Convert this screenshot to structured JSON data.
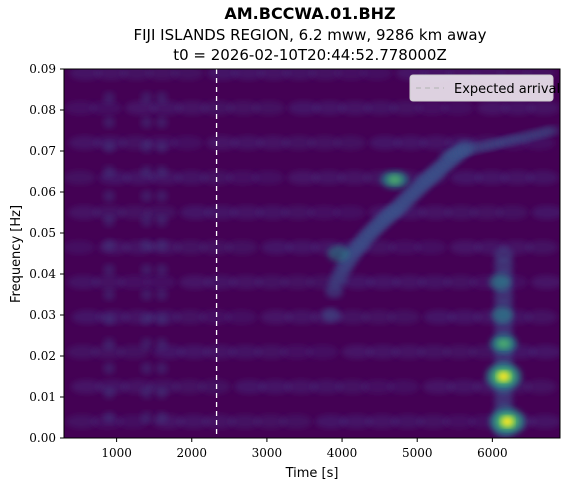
{
  "chart_data": {
    "type": "heatmap",
    "title": "AM.BCCWA.01.BHZ",
    "subtitle_lines": [
      "FIJI ISLANDS REGION, 6.2 mww, 9286 km away",
      "t0 = 2026-02-10T20:44:52.778000Z"
    ],
    "xlabel": "Time [s]",
    "ylabel": "Frequency [Hz]",
    "xlim": [
      300,
      6900
    ],
    "ylim": [
      0,
      0.09
    ],
    "x_ticks": [
      1000,
      2000,
      3000,
      4000,
      5000,
      6000
    ],
    "y_ticks": [
      "0.00",
      "0.01",
      "0.02",
      "0.03",
      "0.04",
      "0.05",
      "0.06",
      "0.07",
      "0.08",
      "0.09"
    ],
    "colormap": "viridis",
    "expected_arrival_time": 2330,
    "legend": {
      "label": "Expected arrival",
      "placement": "top-right"
    },
    "energy_features": [
      {
        "t": 6200,
        "f": 0.004,
        "amp": 1.0
      },
      {
        "t": 6150,
        "f": 0.015,
        "amp": 0.8
      },
      {
        "t": 6150,
        "f": 0.023,
        "amp": 0.5
      },
      {
        "t": 6130,
        "f": 0.03,
        "amp": 0.35
      },
      {
        "t": 6100,
        "f": 0.038,
        "amp": 0.25
      },
      {
        "t": 4700,
        "f": 0.063,
        "amp": 0.45
      },
      {
        "t": 3950,
        "f": 0.045,
        "amp": 0.25
      }
    ]
  },
  "colors": {
    "background": "#440154",
    "arrival_line": "#ffffff"
  }
}
